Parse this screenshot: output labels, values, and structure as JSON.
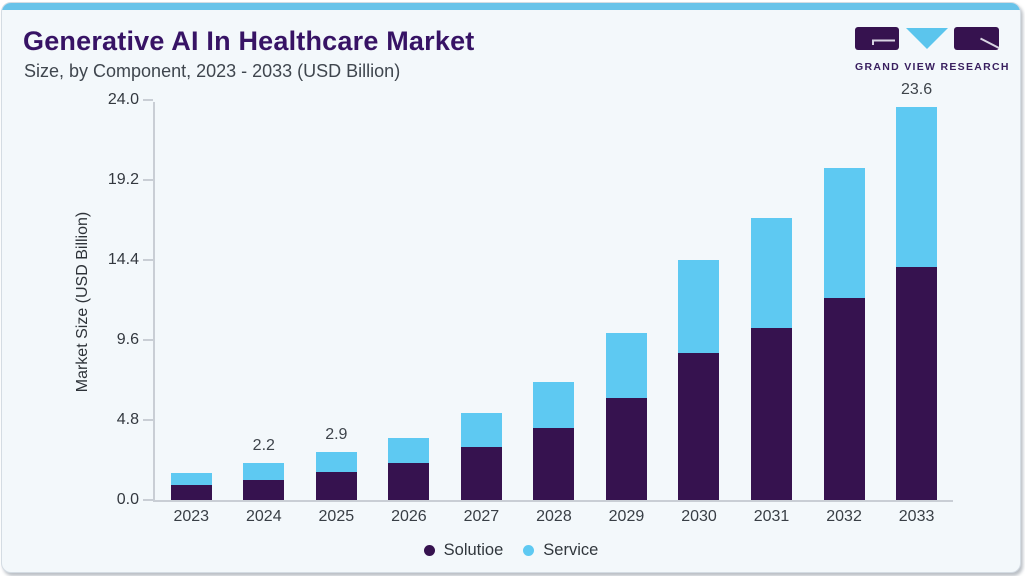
{
  "header": {
    "title": "Generative AI In Healthcare Market",
    "subtitle": "Size, by Component, 2023 - 2033 (USD Billion)",
    "logo_text": "GRAND VIEW RESEARCH"
  },
  "colors": {
    "accent_bar": "#68c3e9",
    "title_text": "#371365",
    "solution": "#36124f",
    "service": "#5ec9f2",
    "card_background": "#f3f8fb",
    "axis_line": "#c9ced5"
  },
  "chart_data": {
    "type": "bar",
    "stacked": true,
    "title": "Generative AI In Healthcare Market Size, by Component, 2023 - 2033 (USD Billion)",
    "ylabel": "Market Size (USD Billion)",
    "xlabel": "",
    "categories": [
      "2023",
      "2024",
      "2025",
      "2026",
      "2027",
      "2028",
      "2029",
      "2030",
      "2031",
      "2032",
      "2033"
    ],
    "series": [
      {
        "name": "Solutioe",
        "color": "#36124f",
        "values": [
          0.9,
          1.2,
          1.7,
          2.2,
          3.2,
          4.3,
          6.1,
          8.8,
          10.3,
          12.1,
          14.0
        ]
      },
      {
        "name": "Service",
        "color": "#5ec9f2",
        "values": [
          0.7,
          1.0,
          1.2,
          1.5,
          2.0,
          2.8,
          3.9,
          5.6,
          6.6,
          7.8,
          9.6
        ]
      }
    ],
    "totals": [
      1.6,
      2.2,
      2.9,
      3.7,
      5.2,
      7.1,
      10.0,
      14.4,
      16.9,
      19.9,
      23.6
    ],
    "bar_labels": [
      "",
      "2.2",
      "2.9",
      "",
      "",
      "",
      "",
      "",
      "",
      "",
      "23.6"
    ],
    "ylim": [
      0,
      24
    ],
    "yticks": [
      0.0,
      4.8,
      9.6,
      14.4,
      19.2,
      24.0
    ],
    "ytick_labels": [
      "0.0",
      "4.8",
      "9.6",
      "14.4",
      "19.2",
      "24.0"
    ],
    "grid": false,
    "legend_position": "bottom"
  }
}
